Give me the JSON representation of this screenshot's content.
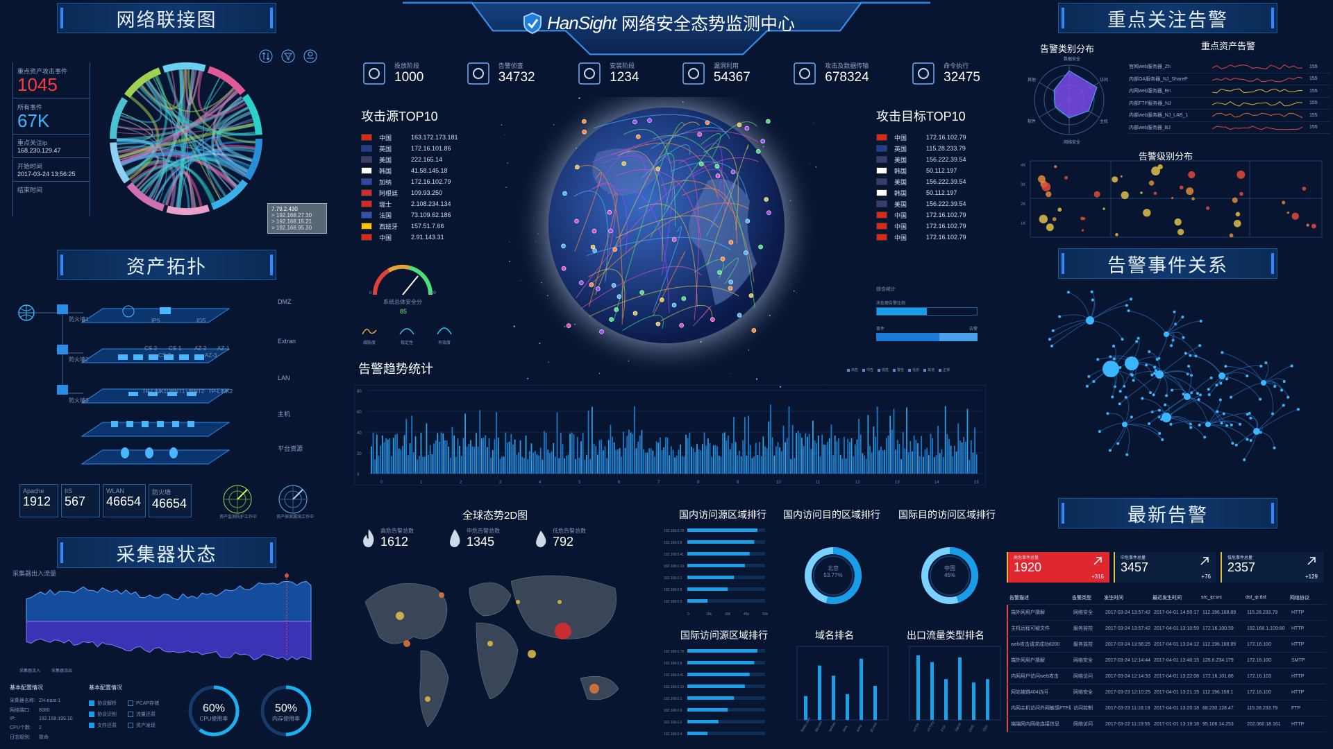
{
  "header": {
    "brand": "HanSight",
    "title": "网络安全态势监测中心"
  },
  "panels": {
    "network": "网络联接图",
    "asset": "资产拓扑",
    "collector": "采集器状态",
    "alert_focus": "重点关注告警",
    "event_rel": "告警事件关系",
    "latest": "最新告警"
  },
  "network_info": {
    "items": [
      {
        "label": "重点资产攻击事件",
        "value": "1045"
      },
      {
        "label": "所有事件",
        "value": "67K"
      },
      {
        "label": "重点关注ip",
        "value": "168.230.129.47"
      },
      {
        "label": "开始时间",
        "value": "2017-03-24 13:56:25"
      },
      {
        "label": "结束时间",
        "value": ""
      }
    ],
    "tooltip": [
      "7.79.2.430",
      "> 192.168.27.30",
      "> 192.168.15.21",
      "> 192.168.95.30"
    ]
  },
  "topology": {
    "zones": [
      "DMZ",
      "Extran",
      "LAN",
      "主机",
      "平台资源"
    ],
    "firewalls": [
      "防火墙1",
      "防火墙2",
      "防火墙3"
    ],
    "layer_labels": [
      [
        "IPS",
        "IDS"
      ],
      [
        "CS-2",
        "CS-1",
        "CS-3",
        "AZ-2",
        "AZ-1",
        "AZ-3"
      ],
      [
        "TP-LINK1",
        "UBNT1",
        "UBNT2",
        "TP-LINK2"
      ],
      [],
      []
    ],
    "stats": [
      {
        "name": "Apache",
        "value": "1912"
      },
      {
        "name": "IIS",
        "value": "567"
      },
      {
        "name": "WLAN",
        "value": "46654"
      },
      {
        "name": "防火墙",
        "value": "46654"
      }
    ],
    "radar_labels": [
      "资产监测防护工作中",
      "资产探测漏洞工作中"
    ]
  },
  "collector": {
    "chart_label": "采集器出入流量",
    "legend": [
      "采集器流入",
      "采集器流出"
    ],
    "config_title": "基本配置情况",
    "config": [
      {
        "k": "采集器名称:",
        "v": "ZH-east-1"
      },
      {
        "k": "网络端口:",
        "v": "8080"
      },
      {
        "k": "IP:",
        "v": "192.168.199.10"
      },
      {
        "k": "CPU个数:",
        "v": "2"
      },
      {
        "k": "日志级别:",
        "v": "致命"
      }
    ],
    "config2_title": "基本配置情况",
    "checks": [
      {
        "a": "协议解析",
        "b": "PCAP存储"
      },
      {
        "a": "协议识别",
        "b": "流量还原"
      },
      {
        "a": "文件还原",
        "b": "资产发现"
      }
    ],
    "cpu": {
      "value": "60%",
      "label": "CPU使用率",
      "pct": 0.6
    },
    "mem": {
      "value": "50%",
      "label": "内存使用率",
      "pct": 0.5
    }
  },
  "kill_chain": [
    {
      "label": "投放阶段",
      "value": "1000",
      "icon": "rocket-icon"
    },
    {
      "label": "告警侦查",
      "value": "34732",
      "icon": "eye-icon"
    },
    {
      "label": "安装阶段",
      "value": "1234",
      "icon": "play-icon"
    },
    {
      "label": "漏洞利用",
      "value": "54367",
      "icon": "bug-icon"
    },
    {
      "label": "攻击及数据传输",
      "value": "678324",
      "icon": "lightning-icon"
    },
    {
      "label": "命令执行",
      "value": "32475",
      "icon": "code-icon"
    }
  ],
  "attack_source": {
    "title": "攻击源TOP10",
    "rows": [
      {
        "country": "中国",
        "ip": "163.172.173.181",
        "flag": "#de2910"
      },
      {
        "country": "英国",
        "ip": "172.16.101.86",
        "flag": "#1f3f8f"
      },
      {
        "country": "美国",
        "ip": "222.165.14",
        "flag": "#3c3b6e"
      },
      {
        "country": "韩国",
        "ip": "41.58.145.18",
        "flag": "#ffffff"
      },
      {
        "country": "加纳",
        "ip": "172.16.102.79",
        "flag": "#2b4aa8"
      },
      {
        "country": "阿根廷",
        "ip": "109.93.250",
        "flag": "#cf2e2e"
      },
      {
        "country": "瑞士",
        "ip": "2.108.234.134",
        "flag": "#d52b1e"
      },
      {
        "country": "法国",
        "ip": "73.109.62.186",
        "flag": "#2f55b0"
      },
      {
        "country": "西班牙",
        "ip": "157.51.7.66",
        "flag": "#ffc400"
      },
      {
        "country": "中国",
        "ip": "2.91.143.31",
        "flag": "#de2910"
      }
    ]
  },
  "attack_target": {
    "title": "攻击目标TOP10",
    "rows": [
      {
        "country": "中国",
        "ip": "172.16.102.79",
        "flag": "#de2910"
      },
      {
        "country": "英国",
        "ip": "115.28.233.79",
        "flag": "#1f3f8f"
      },
      {
        "country": "美国",
        "ip": "156.222.39.54",
        "flag": "#3c3b6e"
      },
      {
        "country": "韩国",
        "ip": "50.112.197",
        "flag": "#ffffff"
      },
      {
        "country": "美国",
        "ip": "156.222.39.54",
        "flag": "#3c3b6e"
      },
      {
        "country": "韩国",
        "ip": "50.112.197",
        "flag": "#ffffff"
      },
      {
        "country": "美国",
        "ip": "156.222.39.54",
        "flag": "#3c3b6e"
      },
      {
        "country": "中国",
        "ip": "172.16.102.79",
        "flag": "#de2910"
      },
      {
        "country": "中国",
        "ip": "172.16.102.79",
        "flag": "#de2910"
      },
      {
        "country": "中国",
        "ip": "172.16.102.79",
        "flag": "#de2910"
      }
    ]
  },
  "gauge": {
    "label": "系统总体安全分",
    "value": "85",
    "min": "0",
    "max": "100"
  },
  "mini_trends": [
    "威胁度",
    "稳定性",
    "有效度"
  ],
  "stats_right": {
    "title": "综合统计",
    "bar1_label": "未处理告警比例",
    "bar2_left": "事件",
    "bar2_right": "告警",
    "bar1_pct": 0.5,
    "bar2_pct": 0.62
  },
  "trend": {
    "title": "告警趋势统计",
    "legend": [
      "高危",
      "中危",
      "低危",
      "警告",
      "信息",
      "其他",
      "正常"
    ],
    "yticks": [
      "80",
      "60",
      "40",
      "20",
      "0"
    ],
    "xticks": [
      "0",
      "1",
      "2",
      "3",
      "4",
      "5",
      "6",
      "7",
      "8",
      "9",
      "10",
      "11",
      "12",
      "13",
      "14",
      "15"
    ]
  },
  "global2d": {
    "title": "全球态势2D图",
    "stats": [
      {
        "label": "高危告警总数",
        "value": "1612"
      },
      {
        "label": "中危告警总数",
        "value": "1345"
      },
      {
        "label": "低危告警总数",
        "value": "792"
      }
    ]
  },
  "rankings": {
    "domestic_src": "国内访问源区域排行",
    "domestic_dst": "国内访问目的区域排行",
    "intl_dst": "国际目的访问区域排行",
    "intl_src": "国际访问源区域排行",
    "domain": "域名排名",
    "outbound": "出口流量类型排名",
    "bar_axis": [
      "0",
      "15k",
      "30k",
      "45k",
      "60k"
    ],
    "bar_labels": [
      "192.168.0.78",
      "192.168.0.8",
      "192.168.0.41",
      "192.168.0.10",
      "192.168.0.1",
      "192.168.0.6",
      "192.168.0.5"
    ],
    "bar_values": [
      0.9,
      0.86,
      0.8,
      0.74,
      0.6,
      0.52,
      0.26
    ],
    "bar2_labels": [
      "192.168.0.78",
      "192.168.0.8",
      "192.168.0.41",
      "192.168.0.10",
      "192.168.0.1",
      "192.168.0.6",
      "192.168.0.5",
      "192.168.0.4"
    ],
    "bar2_values": [
      0.9,
      0.86,
      0.8,
      0.74,
      0.6,
      0.52,
      0.4,
      0.26
    ],
    "donut1": {
      "center": "北京",
      "value": "53.77%",
      "pct": 0.54
    },
    "donut2": {
      "center": "中国",
      "value": "45%",
      "pct": 0.45
    },
    "domain_bars": [
      0.35,
      0.8,
      0.65,
      0.38,
      0.9,
      0.5
    ],
    "domain_labels": [
      "baidu.com",
      "qq.com",
      "taobao",
      "sina",
      "sohu",
      "jd.com"
    ],
    "out_bars": [
      0.95,
      0.85,
      0.6,
      0.92,
      0.55,
      0.6
    ],
    "out_labels": [
      "HTTP",
      "HTTPS",
      "FTP",
      "SMTP",
      "DNS",
      "SSH"
    ]
  },
  "alert_focus": {
    "radar_title": "告警类别分布",
    "radar_labels": [
      "数据安全",
      "访问",
      "主机",
      "网络安全",
      "软件",
      "其他"
    ],
    "asset_title": "重点资产告警",
    "assets": [
      {
        "name": "官网web服务器_Zh",
        "val": "155",
        "color": "#e04a4a"
      },
      {
        "name": "内部OA服务器_NJ_ShareP",
        "val": "155",
        "color": "#e04a4a"
      },
      {
        "name": "内网web服务器_En",
        "val": "155",
        "color": "#e0b43a"
      },
      {
        "name": "内部FTP服务器_NJ",
        "val": "155",
        "color": "#e0b43a"
      },
      {
        "name": "内部web服务器_NJ_LAB_1",
        "val": "155",
        "color": "#e06a3a"
      },
      {
        "name": "内部web服务器_BJ",
        "val": "155",
        "color": "#e04a4a"
      }
    ],
    "scatter_title": "告警级别分布",
    "scatter_y": [
      "4K",
      "3K",
      "2K",
      "1K"
    ]
  },
  "latest": {
    "cards": [
      {
        "label": "高危事件总量",
        "value": "1920",
        "delta": "+316",
        "color": "#e0262f"
      },
      {
        "label": "中危事件总量",
        "value": "3457",
        "delta": "+76",
        "color": "#0b1f3f"
      },
      {
        "label": "低危事件总量",
        "value": "2357",
        "delta": "+129",
        "color": "#0b1f3f"
      }
    ],
    "headers": [
      "告警描述",
      "告警类型",
      "发生时间",
      "最近发生时间",
      "src_ip:src",
      "dst_ip:dst",
      "网络协议"
    ],
    "rows": [
      [
        "端外网用户猜解",
        "网络安全",
        "2017-03-24 13:57:42",
        "2017-04-01 14:50:17",
        "112.196.168.89",
        "115.28.233.79",
        "HTTP"
      ],
      [
        "主机远程可疑文件",
        "服务监控",
        "2017-03-24 13:57:42",
        "2017-04-01 13:10:59",
        "172.16.100.59",
        "192.168.1.109:80",
        "HTTP"
      ],
      [
        "web攻击请求成功8200",
        "服务监控",
        "2017-03-24 13:56:25",
        "2017-04-01 13:24:12",
        "112.196.168.89",
        "172.16.100",
        "HTTP"
      ],
      [
        "端外网用户猜解",
        "网络安全",
        "2017-03-24 12:14:44",
        "2017-04-01 13:40:15",
        "126.6.234.179",
        "172.16.100",
        "SMTP"
      ],
      [
        "内网用户访问web攻击",
        "网络访问",
        "2017-03-24 12:14:33",
        "2017-04-01 13:22:08",
        "172.16.101.86",
        "172.16.103",
        "HTTP"
      ],
      [
        "网站被跳404访问",
        "网络安全",
        "2017-03-23 12:10:25",
        "2017-04-01 13:21:15",
        "112.196.168.1",
        "172.16.100",
        "HTTP"
      ],
      [
        "内网主机访问外网敏感FTP服务器",
        "访问控制",
        "2017-03-23 11:16:19",
        "2017-04-01 13:20:18",
        "68.230.128.47",
        "115.28.233.79",
        "FTP"
      ],
      [
        "端端网内网络连接信息",
        "网络访问",
        "2017-03-22 11:19:55",
        "2017-01-01 13:19:16",
        "95.106.14.253",
        "202.060.18.161",
        "HTTP"
      ]
    ]
  }
}
